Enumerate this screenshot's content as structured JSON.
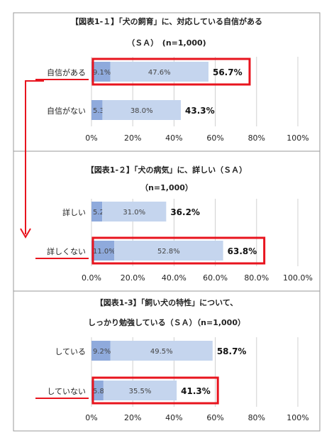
{
  "colors": {
    "dark_segment": "#8faadc",
    "light_segment": "#c5d5ee",
    "highlight": "#e8141e",
    "grid": "#d0d0d0",
    "text": "#222222",
    "panel_border": "#999999"
  },
  "chart_data": [
    {
      "type": "bar",
      "orientation": "horizontal",
      "stacked": true,
      "title_lines": [
        "【図表1-１】「犬の飼育」に、対応している自信がある",
        "（ＳＡ）　(n=1,000)"
      ],
      "categories": [
        "自信がある",
        "自信がない"
      ],
      "series": [
        {
          "values": [
            9.1,
            5.3
          ],
          "color": "#8faadc"
        },
        {
          "values": [
            47.6,
            38.0
          ],
          "color": "#c5d5ee"
        }
      ],
      "segment_labels": [
        [
          "9.1%",
          "47.6%"
        ],
        [
          "5.3%",
          "38.0%"
        ]
      ],
      "totals": [
        56.7,
        43.3
      ],
      "total_labels": [
        "56.7%",
        "43.3%"
      ],
      "highlight_index": 0,
      "xlim": [
        0,
        100
      ],
      "xtick_labels": [
        "0%",
        "20%",
        "40%",
        "60%",
        "80%",
        "100%"
      ],
      "grid": true
    },
    {
      "type": "bar",
      "orientation": "horizontal",
      "stacked": true,
      "title_lines": [
        "【図表1-２】「犬の病気」に、詳しい（ＳＡ）",
        "（n=1,000）"
      ],
      "categories": [
        "詳しい",
        "詳しくない"
      ],
      "series": [
        {
          "values": [
            5.2,
            11.0
          ],
          "color": "#8faadc"
        },
        {
          "values": [
            31.0,
            52.8
          ],
          "color": "#c5d5ee"
        }
      ],
      "segment_labels": [
        [
          "5.2%",
          "31.0%"
        ],
        [
          "11.0%",
          "52.8%"
        ]
      ],
      "totals": [
        36.2,
        63.8
      ],
      "total_labels": [
        "36.2%",
        "63.8%"
      ],
      "highlight_index": 1,
      "xlim": [
        0,
        100
      ],
      "xtick_labels": [
        "0.0%",
        "20.0%",
        "40.0%",
        "60.0%",
        "80.0%",
        "100.0%"
      ],
      "grid": true
    },
    {
      "type": "bar",
      "orientation": "horizontal",
      "stacked": true,
      "title_lines": [
        "【図表1-3】「飼い犬の特性」について、",
        "しっかり勉強している（ＳＡ）（n=1,000）"
      ],
      "categories": [
        "している",
        "していない"
      ],
      "series": [
        {
          "values": [
            9.2,
            5.8
          ],
          "color": "#8faadc"
        },
        {
          "values": [
            49.5,
            35.5
          ],
          "color": "#c5d5ee"
        }
      ],
      "segment_labels": [
        [
          "9.2%",
          "49.5%"
        ],
        [
          "5.8%",
          "35.5%"
        ]
      ],
      "totals": [
        58.7,
        41.3
      ],
      "total_labels": [
        "58.7%",
        "41.3%"
      ],
      "highlight_index": 1,
      "xlim": [
        0,
        100
      ],
      "xtick_labels": [
        "0%",
        "20%",
        "40%",
        "60%",
        "80%",
        "100%"
      ],
      "grid": true
    }
  ]
}
